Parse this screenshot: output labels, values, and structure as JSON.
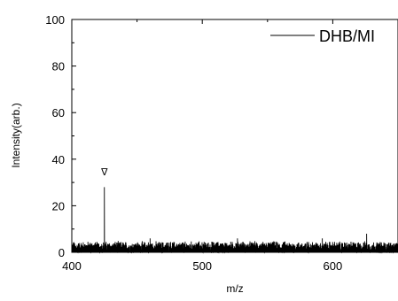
{
  "chart_data": {
    "type": "line",
    "xlabel": "m/z",
    "ylabel": "Intensity(arb.)",
    "xlim": [
      400,
      650
    ],
    "ylim": [
      0,
      100
    ],
    "x_ticks": [
      400,
      500,
      600
    ],
    "y_ticks": [
      0,
      20,
      40,
      60,
      80,
      100
    ],
    "grid": false,
    "legend_position": "top-right",
    "series": [
      {
        "name": "DHB/MI",
        "color": "#000000",
        "baseline_noise": [
          0,
          5
        ],
        "peaks": [
          {
            "x": 425,
            "y": 28
          },
          {
            "x": 460,
            "y": 6
          },
          {
            "x": 527,
            "y": 6
          },
          {
            "x": 592,
            "y": 6
          },
          {
            "x": 626,
            "y": 8
          }
        ]
      }
    ],
    "annotations": [
      {
        "text": "∇",
        "x": 425,
        "y": 33
      }
    ]
  }
}
